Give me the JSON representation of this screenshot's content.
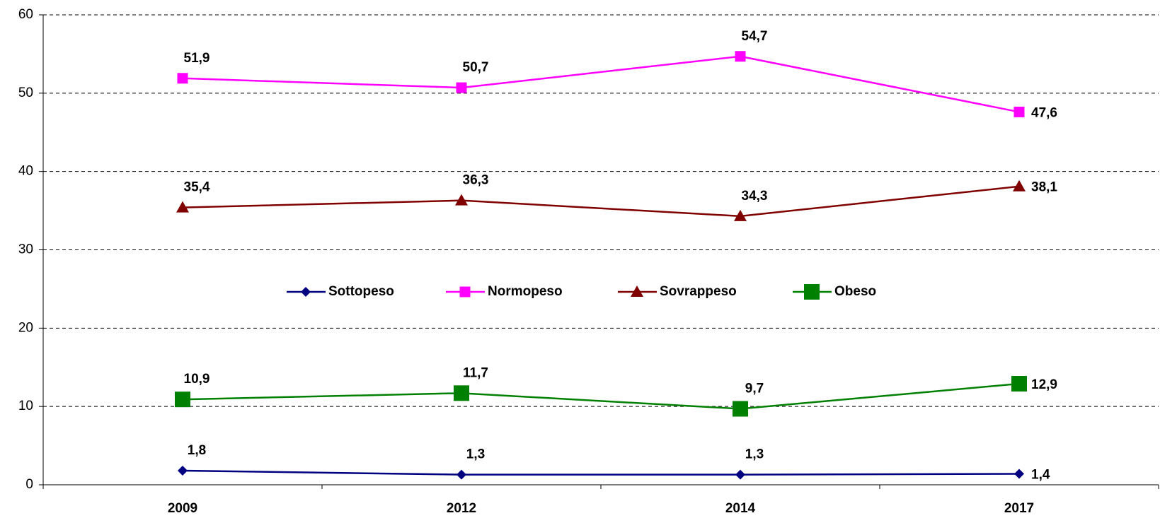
{
  "chart_data": {
    "type": "line",
    "categories": [
      "2009",
      "2012",
      "2014",
      "2017"
    ],
    "series": [
      {
        "name": "Sottopeso",
        "color": "#000080",
        "marker": "diamond",
        "values": [
          1.8,
          1.3,
          1.3,
          1.4
        ],
        "value_labels": [
          "1,8",
          "1,3",
          "1,3",
          "1,4"
        ]
      },
      {
        "name": "Normopeso",
        "color": "#ff00ff",
        "marker": "square",
        "values": [
          51.9,
          50.7,
          54.7,
          47.6
        ],
        "value_labels": [
          "51,9",
          "50,7",
          "54,7",
          "47,6"
        ]
      },
      {
        "name": "Sovrappeso",
        "color": "#800000",
        "marker": "triangle",
        "values": [
          35.4,
          36.3,
          34.3,
          38.1
        ],
        "value_labels": [
          "35,4",
          "36,3",
          "34,3",
          "38,1"
        ]
      },
      {
        "name": "Obeso",
        "color": "#008000",
        "marker": "bigsquare",
        "values": [
          10.9,
          11.7,
          9.7,
          12.9
        ],
        "value_labels": [
          "10,9",
          "11,7",
          "9,7",
          "12,9"
        ]
      }
    ],
    "ylim": [
      0,
      60
    ],
    "yticks": [
      0,
      10,
      20,
      30,
      40,
      50,
      60
    ],
    "grid": true,
    "legend": "center"
  }
}
